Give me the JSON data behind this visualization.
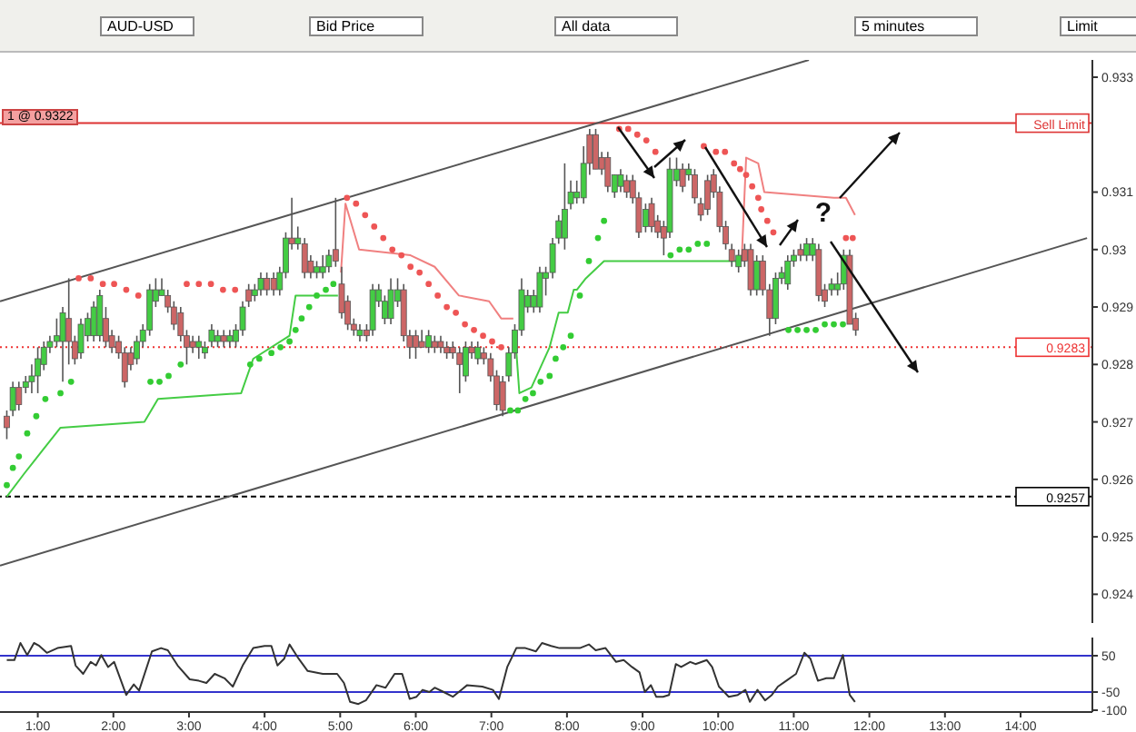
{
  "chart_data": [
    {
      "type": "candlestick",
      "title": "AUD-USD",
      "annotations": [
        "Bid Price",
        "All data",
        "5 minutes",
        "Limit",
        "1 @ 0.9322",
        "?"
      ],
      "xlim": [
        0.5,
        14.95
      ],
      "ylim": [
        0.9235,
        0.9333
      ],
      "yticks": [
        0.924,
        0.925,
        0.926,
        0.927,
        0.928,
        0.929,
        0.93,
        0.931,
        0.933
      ],
      "tick_labels": "y",
      "ref_lines": [
        {
          "axis": "y",
          "value": 0.9322,
          "label": "Sell Limit",
          "color": "#dd3333",
          "line_style": "solid"
        },
        {
          "axis": "y",
          "value": 0.9283,
          "label": "0.9283",
          "color": "#ee3333",
          "line_style": "dotted"
        },
        {
          "axis": "y",
          "value": 0.9257,
          "label": "0.9257",
          "color": "#000000",
          "line_style": "dashed"
        }
      ],
      "series": [
        {
          "type": "line",
          "color": "#555555",
          "x": [
            0.5,
            11.2
          ],
          "values": [
            0.9291,
            0.9333
          ]
        },
        {
          "type": "line",
          "color": "#555555",
          "x": [
            0.5,
            14.88
          ],
          "values": [
            0.9245,
            0.9302
          ]
        },
        {
          "type": "line",
          "color": "#44cc44",
          "x": [
            0.59,
            0.82,
            1.06,
            1.3,
            2.41,
            2.59,
            3.69,
            3.85,
            4.33,
            4.41,
            4.97,
            5.0,
            7.31,
            7.37,
            7.53,
            7.77,
            7.89,
            8.01,
            8.09,
            8.13,
            8.25,
            8.49,
            10.17,
            10.29
          ],
          "values": [
            0.9257,
            0.9261,
            0.9265,
            0.9269,
            0.927,
            0.9274,
            0.9275,
            0.9281,
            0.9285,
            0.9292,
            0.9292,
            null,
            0.9286,
            0.9275,
            0.9276,
            0.9283,
            0.9289,
            0.9289,
            0.9293,
            0.9293,
            0.9295,
            0.9298,
            0.9298,
            0.9298
          ]
        },
        {
          "type": "line",
          "color": "#f08080",
          "x": [
            5.01,
            5.07,
            5.25,
            5.93,
            6.25,
            6.57,
            6.97,
            7.13,
            7.29,
            8.0,
            10.31,
            10.37,
            10.53,
            10.61,
            11.53,
            11.69,
            11.81
          ],
          "values": [
            0.9296,
            0.9308,
            0.93,
            0.9299,
            0.9297,
            0.9292,
            0.9291,
            0.9288,
            0.9288,
            null,
            0.9298,
            0.9316,
            0.9315,
            0.931,
            0.9309,
            0.9309,
            0.9306
          ]
        },
        {
          "type": "scatter",
          "marker": "circle",
          "color": "#33cc33",
          "x": [
            0.59,
            0.67,
            0.75,
            0.86,
            0.98,
            1.1,
            1.3,
            1.44,
            2.49,
            2.61,
            2.73,
            2.89,
            3.81,
            3.93,
            4.09,
            4.21,
            4.33,
            4.41,
            4.49,
            4.59,
            4.69,
            4.81,
            4.91,
            7.25,
            7.35,
            7.45,
            7.55,
            7.65,
            7.77,
            7.85,
            7.95,
            8.05,
            8.17,
            8.29,
            8.41,
            8.49,
            8.63,
            9.37,
            9.49,
            9.61,
            9.73,
            9.85,
            10.93,
            11.05,
            11.17,
            11.29,
            11.41,
            11.53,
            11.65
          ],
          "values": [
            0.9259,
            0.9262,
            0.9264,
            0.9268,
            0.9271,
            0.9274,
            0.9275,
            0.9277,
            0.9277,
            0.9277,
            0.9278,
            0.928,
            0.928,
            0.9281,
            0.9282,
            0.9283,
            0.9284,
            0.9286,
            0.9288,
            0.929,
            0.9292,
            0.9293,
            0.9294,
            0.9272,
            0.9272,
            0.9274,
            0.9275,
            0.9277,
            0.9278,
            0.9281,
            0.9283,
            0.9285,
            0.9292,
            0.9298,
            0.9302,
            0.9305,
            null,
            0.9299,
            0.93,
            0.93,
            0.9301,
            0.9301,
            0.9286,
            0.9286,
            0.9286,
            0.9286,
            0.9287,
            0.9287,
            0.9287
          ]
        },
        {
          "type": "scatter",
          "marker": "circle",
          "color": "#ee5555",
          "x": [
            1.54,
            1.7,
            1.86,
            2.01,
            2.17,
            2.33,
            2.45,
            2.97,
            3.13,
            3.29,
            3.45,
            3.61,
            5.09,
            5.21,
            5.33,
            5.45,
            5.57,
            5.69,
            5.81,
            5.93,
            6.05,
            6.17,
            6.29,
            6.41,
            6.53,
            6.65,
            6.77,
            6.89,
            7.01,
            7.13,
            8.69,
            8.81,
            8.93,
            9.05,
            9.17,
            9.81,
            9.97,
            10.09,
            10.21,
            10.29,
            10.37,
            10.45,
            10.53,
            10.57,
            10.65,
            10.73,
            11.69,
            11.78
          ],
          "values": [
            0.9295,
            0.9295,
            0.9294,
            0.9294,
            0.9293,
            0.9292,
            null,
            0.9294,
            0.9294,
            0.9294,
            0.9293,
            0.9293,
            0.9309,
            0.9308,
            0.9306,
            0.9304,
            0.9302,
            0.93,
            0.9299,
            0.9297,
            0.9296,
            0.9294,
            0.9292,
            0.929,
            0.9289,
            0.9287,
            0.9286,
            0.9285,
            0.9284,
            0.9283,
            0.9321,
            0.9321,
            0.932,
            0.9319,
            0.9317,
            0.9318,
            0.9317,
            0.9317,
            0.9315,
            0.9314,
            0.9313,
            0.9311,
            0.9309,
            0.9307,
            0.9305,
            0.9303,
            0.9302,
            0.9302
          ]
        },
        {
          "color": "#44cc44",
          "x": [
            0.67,
            0.84,
            0.92,
            1.0,
            1.08,
            1.16,
            1.25,
            1.33,
            1.57,
            1.66,
            1.74,
            1.82,
            2.31,
            2.39,
            2.48,
            2.56,
            2.64,
            3.13,
            3.21,
            3.3,
            3.38,
            3.54,
            3.62,
            3.71,
            3.87,
            3.95,
            4.2,
            4.28,
            4.44,
            4.69,
            4.77,
            4.85,
            5.26,
            5.43,
            5.51,
            5.59,
            5.67,
            5.76,
            6.17,
            6.66,
            6.82,
            7.23,
            7.31,
            7.4,
            7.48,
            7.56,
            7.64,
            7.72,
            7.81,
            7.89,
            7.97,
            8.05,
            8.13,
            8.22,
            8.63,
            8.71,
            9.04,
            9.36,
            9.45,
            9.61,
            10.27,
            10.51,
            10.76,
            10.84,
            10.92,
            11.0,
            11.17,
            11.25,
            11.5,
            11.58,
            11.66
          ],
          "ohlc": [
            [
              0.9272,
              0.9277,
              0.9271,
              0.9276
            ],
            [
              0.9276,
              0.9278,
              0.9275,
              0.9277
            ],
            [
              0.9277,
              0.928,
              0.9275,
              0.9278
            ],
            [
              0.9278,
              0.9283,
              0.9275,
              0.9281
            ],
            [
              0.928,
              0.9284,
              0.9279,
              0.9283
            ],
            [
              0.9283,
              0.9285,
              0.9282,
              0.9284
            ],
            [
              0.9284,
              0.9288,
              0.9283,
              0.9285
            ],
            [
              0.9284,
              0.929,
              0.9277,
              0.9289
            ],
            [
              0.9282,
              0.9288,
              0.9281,
              0.9287
            ],
            [
              0.9285,
              0.9289,
              0.9284,
              0.9288
            ],
            [
              0.9285,
              0.9291,
              0.9284,
              0.929
            ],
            [
              0.9285,
              0.9293,
              0.9284,
              0.9292
            ],
            [
              0.9281,
              0.9285,
              0.928,
              0.9284
            ],
            [
              0.9284,
              0.9287,
              0.9283,
              0.9286
            ],
            [
              0.9286,
              0.9294,
              0.9285,
              0.9293
            ],
            [
              0.9291,
              0.9295,
              0.929,
              0.9293
            ],
            [
              0.9292,
              0.9295,
              0.9292,
              0.9293
            ],
            [
              0.9283,
              0.9285,
              0.9281,
              0.9284
            ],
            [
              0.9282,
              0.9284,
              0.9281,
              0.9283
            ],
            [
              0.9284,
              0.9287,
              0.9283,
              0.9286
            ],
            [
              0.9284,
              0.9286,
              0.9283,
              0.9285
            ],
            [
              0.9284,
              0.9286,
              0.9283,
              0.9285
            ],
            [
              0.9284,
              0.9287,
              0.9283,
              0.9286
            ],
            [
              0.9286,
              0.9291,
              0.9285,
              0.929
            ],
            [
              0.9292,
              0.9294,
              0.9291,
              0.9293
            ],
            [
              0.9293,
              0.9296,
              0.9292,
              0.9295
            ],
            [
              0.9293,
              0.9297,
              0.9292,
              0.9296
            ],
            [
              0.9296,
              0.9303,
              0.9295,
              0.9302
            ],
            [
              0.9301,
              0.9304,
              0.93,
              0.9302
            ],
            [
              0.9296,
              0.9298,
              0.9295,
              0.9297
            ],
            [
              0.9296,
              0.9299,
              0.9295,
              0.9297
            ],
            [
              0.9297,
              0.93,
              0.9296,
              0.9299
            ],
            [
              0.9285,
              0.9287,
              0.9284,
              0.9286
            ],
            [
              0.9286,
              0.9294,
              0.9285,
              0.9293
            ],
            [
              0.9291,
              0.9294,
              0.929,
              0.9293
            ],
            [
              0.9288,
              0.9292,
              0.9287,
              0.9291
            ],
            [
              0.9288,
              0.9295,
              0.9287,
              0.9293
            ],
            [
              0.9291,
              0.9295,
              0.929,
              0.9293
            ],
            [
              0.9283,
              0.9286,
              0.9282,
              0.9285
            ],
            [
              0.9278,
              0.9284,
              0.9277,
              0.9283
            ],
            [
              0.9281,
              0.9284,
              0.928,
              0.9283
            ],
            [
              0.9278,
              0.9283,
              0.9277,
              0.9282
            ],
            [
              0.9282,
              0.9287,
              0.9281,
              0.9286
            ],
            [
              0.9286,
              0.9295,
              0.9285,
              0.9293
            ],
            [
              0.929,
              0.9293,
              0.9289,
              0.9292
            ],
            [
              0.929,
              0.9293,
              0.9289,
              0.9292
            ],
            [
              0.929,
              0.9297,
              0.9289,
              0.9296
            ],
            [
              0.9295,
              0.9297,
              0.9292,
              0.9296
            ],
            [
              0.9296,
              0.9302,
              0.9295,
              0.9301
            ],
            [
              0.9302,
              0.9306,
              0.9301,
              0.9305
            ],
            [
              0.9302,
              0.9315,
              0.93,
              0.9307
            ],
            [
              0.9308,
              0.9312,
              0.9307,
              0.931
            ],
            [
              0.9309,
              0.9312,
              0.9308,
              0.931
            ],
            [
              0.9309,
              0.9318,
              0.9308,
              0.9315
            ],
            [
              0.931,
              0.9313,
              0.9309,
              0.9313
            ],
            [
              0.9311,
              0.9314,
              0.931,
              0.9313
            ],
            [
              0.9304,
              0.9308,
              0.9303,
              0.9307
            ],
            [
              0.9303,
              0.9316,
              0.9302,
              0.9314
            ],
            [
              0.9312,
              0.9316,
              0.9311,
              0.9314
            ],
            [
              0.9313,
              0.9315,
              0.9312,
              0.9314
            ],
            [
              0.9297,
              0.93,
              0.9296,
              0.9299
            ],
            [
              0.9293,
              0.9299,
              0.9292,
              0.9298
            ],
            [
              0.9288,
              0.9296,
              0.9287,
              0.9295
            ],
            [
              0.9295,
              0.9297,
              0.9294,
              0.9296
            ],
            [
              0.9294,
              0.9299,
              0.9293,
              0.9298
            ],
            [
              0.9298,
              0.93,
              0.9297,
              0.9299
            ],
            [
              0.9299,
              0.9302,
              0.9298,
              0.9301
            ],
            [
              0.9299,
              0.9302,
              0.9298,
              0.9301
            ],
            [
              0.9293,
              0.9295,
              0.9292,
              0.9294
            ],
            [
              0.9293,
              0.9296,
              0.9292,
              0.9294
            ],
            [
              0.9294,
              0.93,
              0.9293,
              0.9299
            ]
          ]
        },
        {
          "color": "#cc6666",
          "x": [
            0.59,
            0.75,
            1.41,
            1.49,
            1.9,
            1.98,
            2.07,
            2.15,
            2.23,
            2.72,
            2.8,
            2.89,
            2.97,
            3.05,
            3.46,
            3.79,
            4.03,
            4.12,
            4.36,
            4.53,
            4.61,
            4.94,
            5.02,
            5.1,
            5.18,
            5.35,
            5.84,
            5.92,
            6.0,
            6.08,
            6.25,
            6.33,
            6.41,
            6.49,
            6.58,
            6.74,
            6.9,
            6.99,
            7.07,
            7.15,
            8.3,
            8.38,
            8.46,
            8.54,
            8.79,
            8.87,
            8.95,
            9.12,
            9.2,
            9.28,
            9.53,
            9.69,
            9.77,
            9.86,
            9.94,
            10.02,
            10.1,
            10.18,
            10.35,
            10.43,
            10.59,
            10.68,
            11.09,
            11.33,
            11.41,
            11.74,
            11.82
          ],
          "ohlc": [
            [
              0.9271,
              0.9272,
              0.9267,
              0.9269
            ],
            [
              0.9276,
              0.9277,
              0.9272,
              0.9273
            ],
            [
              0.9288,
              0.9295,
              0.928,
              0.9284
            ],
            [
              0.9284,
              0.9285,
              0.928,
              0.9281
            ],
            [
              0.9288,
              0.929,
              0.9283,
              0.9284
            ],
            [
              0.9285,
              0.9286,
              0.9282,
              0.9283
            ],
            [
              0.9284,
              0.9285,
              0.9281,
              0.9282
            ],
            [
              0.9282,
              0.9283,
              0.9276,
              0.9277
            ],
            [
              0.9282,
              0.9283,
              0.9279,
              0.928
            ],
            [
              0.9292,
              0.9293,
              0.9289,
              0.929
            ],
            [
              0.929,
              0.9291,
              0.9286,
              0.9287
            ],
            [
              0.9289,
              0.929,
              0.9284,
              0.9285
            ],
            [
              0.9285,
              0.9286,
              0.928,
              0.9283
            ],
            [
              0.9284,
              0.9285,
              0.9282,
              0.9283
            ],
            [
              0.9285,
              0.9286,
              0.9283,
              0.9284
            ],
            [
              0.9293,
              0.9294,
              0.929,
              0.9291
            ],
            [
              0.9295,
              0.9296,
              0.9292,
              0.9293
            ],
            [
              0.9295,
              0.9296,
              0.9292,
              0.9293
            ],
            [
              0.9302,
              0.9309,
              0.93,
              0.9301
            ],
            [
              0.9301,
              0.9302,
              0.9295,
              0.9296
            ],
            [
              0.9298,
              0.9299,
              0.9295,
              0.9296
            ],
            [
              0.93,
              0.9309,
              0.9297,
              0.9298
            ],
            [
              0.9294,
              0.9297,
              0.9288,
              0.9289
            ],
            [
              0.9291,
              0.9292,
              0.9286,
              0.9287
            ],
            [
              0.9287,
              0.9288,
              0.9285,
              0.9286
            ],
            [
              0.9286,
              0.9287,
              0.9284,
              0.9285
            ],
            [
              0.9293,
              0.9294,
              0.9284,
              0.9285
            ],
            [
              0.9285,
              0.9286,
              0.9281,
              0.9283
            ],
            [
              0.9285,
              0.9286,
              0.9281,
              0.9283
            ],
            [
              0.9284,
              0.9286,
              0.9283,
              0.9283
            ],
            [
              0.9284,
              0.9285,
              0.9282,
              0.9283
            ],
            [
              0.9284,
              0.9285,
              0.9282,
              0.9283
            ],
            [
              0.9283,
              0.9284,
              0.9281,
              0.9282
            ],
            [
              0.9283,
              0.9284,
              0.9281,
              0.9282
            ],
            [
              0.9282,
              0.9283,
              0.9275,
              0.928
            ],
            [
              0.9283,
              0.9284,
              0.9281,
              0.9282
            ],
            [
              0.9282,
              0.9283,
              0.928,
              0.9281
            ],
            [
              0.9281,
              0.9282,
              0.9277,
              0.9278
            ],
            [
              0.9278,
              0.9279,
              0.9272,
              0.9273
            ],
            [
              0.9277,
              0.9278,
              0.9271,
              0.9272
            ],
            [
              0.932,
              0.9321,
              0.9313,
              0.9315
            ],
            [
              0.932,
              0.9321,
              0.9314,
              0.9314
            ],
            [
              0.9316,
              0.9317,
              0.9313,
              0.9314
            ],
            [
              0.9316,
              0.9317,
              0.931,
              0.9311
            ],
            [
              0.9312,
              0.9313,
              0.9309,
              0.931
            ],
            [
              0.9312,
              0.9313,
              0.9308,
              0.9309
            ],
            [
              0.9309,
              0.931,
              0.9302,
              0.9303
            ],
            [
              0.9308,
              0.9309,
              0.9303,
              0.9304
            ],
            [
              0.9305,
              0.9306,
              0.9302,
              0.9303
            ],
            [
              0.9304,
              0.9305,
              0.9299,
              0.9302
            ],
            [
              0.9314,
              0.9315,
              0.931,
              0.9311
            ],
            [
              0.9313,
              0.9314,
              0.9308,
              0.9309
            ],
            [
              0.9308,
              0.9309,
              0.9305,
              0.9306
            ],
            [
              0.9312,
              0.9313,
              0.9306,
              0.9307
            ],
            [
              0.9313,
              0.9314,
              0.9309,
              0.931
            ],
            [
              0.931,
              0.9311,
              0.9303,
              0.9304
            ],
            [
              0.9304,
              0.9305,
              0.93,
              0.9301
            ],
            [
              0.93,
              0.9301,
              0.9297,
              0.9298
            ],
            [
              0.93,
              0.9301,
              0.9297,
              0.9298
            ],
            [
              0.93,
              0.9301,
              0.9292,
              0.9293
            ],
            [
              0.9298,
              0.9299,
              0.9292,
              0.9293
            ],
            [
              0.9293,
              0.9294,
              0.9285,
              0.9288
            ],
            [
              0.93,
              0.9301,
              0.9298,
              0.9299
            ],
            [
              0.93,
              0.9301,
              0.9291,
              0.9292
            ],
            [
              0.9293,
              0.9294,
              0.929,
              0.9291
            ],
            [
              0.9299,
              0.93,
              0.9287,
              0.9287
            ],
            [
              0.9288,
              0.9289,
              0.9285,
              0.9286
            ]
          ]
        }
      ]
    },
    {
      "type": "line",
      "xlim": [
        0.5,
        14.95
      ],
      "ylim": [
        -105,
        100
      ],
      "xticks": [
        {
          "value": 1,
          "label": "1:00"
        },
        {
          "value": 2,
          "label": "2:00"
        },
        {
          "value": 3,
          "label": "3:00"
        },
        {
          "value": 4,
          "label": "4:00"
        },
        {
          "value": 5,
          "label": "5:00"
        },
        {
          "value": 6,
          "label": "6:00"
        },
        {
          "value": 7,
          "label": "7:00"
        },
        {
          "value": 8,
          "label": "8:00"
        },
        {
          "value": 9,
          "label": "9:00"
        },
        {
          "value": 10,
          "label": "10:00"
        },
        {
          "value": 11,
          "label": "11:00"
        },
        {
          "value": 12,
          "label": "12:00"
        },
        {
          "value": 13,
          "label": "13:00"
        },
        {
          "value": 14,
          "label": "14:00"
        }
      ],
      "yticks": [
        50,
        -50,
        -100
      ],
      "ref_lines": [
        {
          "axis": "y",
          "value": 50,
          "color": "#3333cc",
          "line_style": "solid"
        },
        {
          "axis": "y",
          "value": -50,
          "color": "#3333cc",
          "line_style": "solid"
        }
      ],
      "series": [
        {
          "color": "#333333",
          "x": [
            0.59,
            0.69,
            0.77,
            0.86,
            0.95,
            1.02,
            1.12,
            1.26,
            1.44,
            1.5,
            1.6,
            1.7,
            1.77,
            1.84,
            1.93,
            2.01,
            2.17,
            2.27,
            2.34,
            2.51,
            2.63,
            2.72,
            2.85,
            3.01,
            3.13,
            3.23,
            3.34,
            3.47,
            3.58,
            3.71,
            3.85,
            4.0,
            4.09,
            4.17,
            4.26,
            4.33,
            4.45,
            4.57,
            4.77,
            4.96,
            5.05,
            5.13,
            5.24,
            5.34,
            5.48,
            5.6,
            5.72,
            5.82,
            5.92,
            6.01,
            6.09,
            6.18,
            6.25,
            6.37,
            6.49,
            6.68,
            6.88,
            7.02,
            7.1,
            7.21,
            7.33,
            7.45,
            7.59,
            7.67,
            7.79,
            7.9,
            8.17,
            8.29,
            8.38,
            8.51,
            8.65,
            8.75,
            8.86,
            8.96,
            9.03,
            9.11,
            9.18,
            9.27,
            9.35,
            9.44,
            9.51,
            9.63,
            9.7,
            9.85,
            9.92,
            10.01,
            10.14,
            10.26,
            10.36,
            10.42,
            10.52,
            10.62,
            10.71,
            10.79,
            10.9,
            11.03,
            11.14,
            11.22,
            11.32,
            11.43,
            11.53,
            11.65,
            11.74,
            11.81
          ],
          "values": [
            38,
            38,
            85,
            52,
            85,
            77,
            58,
            71,
            77,
            23,
            0,
            33,
            23,
            52,
            19,
            33,
            -58,
            -29,
            -46,
            62,
            71,
            65,
            23,
            -15,
            -19,
            -25,
            0,
            -12,
            -35,
            23,
            71,
            77,
            77,
            23,
            42,
            81,
            42,
            8,
            0,
            0,
            -25,
            -77,
            -83,
            -73,
            -31,
            -38,
            0,
            0,
            -69,
            -63,
            -44,
            -50,
            -38,
            -50,
            -63,
            -31,
            -35,
            -44,
            -69,
            19,
            71,
            71,
            62,
            85,
            77,
            71,
            71,
            81,
            65,
            71,
            33,
            38,
            19,
            4,
            -50,
            -31,
            -63,
            -63,
            -58,
            27,
            19,
            33,
            27,
            38,
            19,
            -35,
            -63,
            -58,
            -44,
            -77,
            -44,
            -73,
            -58,
            -35,
            -19,
            0,
            58,
            42,
            -19,
            -12,
            -12,
            52,
            -58,
            -77
          ]
        }
      ]
    }
  ]
}
